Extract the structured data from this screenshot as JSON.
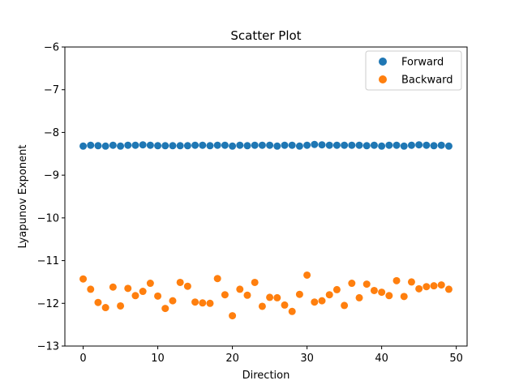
{
  "chart_data": {
    "type": "scatter",
    "title": "Scatter Plot",
    "xlabel": "Direction",
    "ylabel": "Lyapunov Exponent",
    "xlim": [
      -2.45,
      51.45
    ],
    "ylim": [
      -13,
      -6
    ],
    "xticks": [
      0,
      10,
      20,
      30,
      40,
      50
    ],
    "yticks": [
      -13,
      -12,
      -11,
      -10,
      -9,
      -8,
      -7,
      -6
    ],
    "xtick_labels": [
      "0",
      "10",
      "20",
      "30",
      "40",
      "50"
    ],
    "ytick_labels": [
      "−13",
      "−12",
      "−11",
      "−10",
      "−9",
      "−8",
      "−7",
      "−6"
    ],
    "grid": false,
    "legend_position": "top-right",
    "series": [
      {
        "name": "Forward",
        "color": "#1f77b4",
        "x": [
          0,
          1,
          2,
          3,
          4,
          5,
          6,
          7,
          8,
          9,
          10,
          11,
          12,
          13,
          14,
          15,
          16,
          17,
          18,
          19,
          20,
          21,
          22,
          23,
          24,
          25,
          26,
          27,
          28,
          29,
          30,
          31,
          32,
          33,
          34,
          35,
          36,
          37,
          38,
          39,
          40,
          41,
          42,
          43,
          44,
          45,
          46,
          47,
          48,
          49
        ],
        "y": [
          -8.32,
          -8.3,
          -8.31,
          -8.32,
          -8.3,
          -8.32,
          -8.3,
          -8.3,
          -8.29,
          -8.3,
          -8.31,
          -8.31,
          -8.31,
          -8.31,
          -8.31,
          -8.3,
          -8.3,
          -8.31,
          -8.3,
          -8.3,
          -8.32,
          -8.3,
          -8.31,
          -8.3,
          -8.3,
          -8.3,
          -8.32,
          -8.3,
          -8.3,
          -8.32,
          -8.3,
          -8.28,
          -8.29,
          -8.3,
          -8.3,
          -8.3,
          -8.3,
          -8.3,
          -8.31,
          -8.3,
          -8.32,
          -8.3,
          -8.3,
          -8.32,
          -8.3,
          -8.29,
          -8.3,
          -8.31,
          -8.3,
          -8.32
        ]
      },
      {
        "name": "Backward",
        "color": "#ff7f0e",
        "x": [
          0,
          1,
          2,
          3,
          4,
          5,
          6,
          7,
          8,
          9,
          10,
          11,
          12,
          13,
          14,
          15,
          16,
          17,
          18,
          19,
          20,
          21,
          22,
          23,
          24,
          25,
          26,
          27,
          28,
          29,
          30,
          31,
          32,
          33,
          34,
          35,
          36,
          37,
          38,
          39,
          40,
          41,
          42,
          43,
          44,
          45,
          46,
          47,
          48,
          49
        ],
        "y": [
          -11.43,
          -11.67,
          -11.98,
          -12.1,
          -11.62,
          -12.06,
          -11.65,
          -11.82,
          -11.72,
          -11.53,
          -11.83,
          -12.12,
          -11.94,
          -11.51,
          -11.6,
          -11.97,
          -11.99,
          -12.0,
          -11.42,
          -11.8,
          -12.29,
          -11.67,
          -11.81,
          -11.51,
          -12.07,
          -11.86,
          -11.87,
          -12.04,
          -12.19,
          -11.79,
          -11.34,
          -11.97,
          -11.94,
          -11.8,
          -11.68,
          -12.05,
          -11.53,
          -11.87,
          -11.55,
          -11.7,
          -11.74,
          -11.82,
          -11.47,
          -11.84,
          -11.5,
          -11.66,
          -11.61,
          -11.59,
          -11.57,
          -11.67
        ]
      }
    ]
  }
}
